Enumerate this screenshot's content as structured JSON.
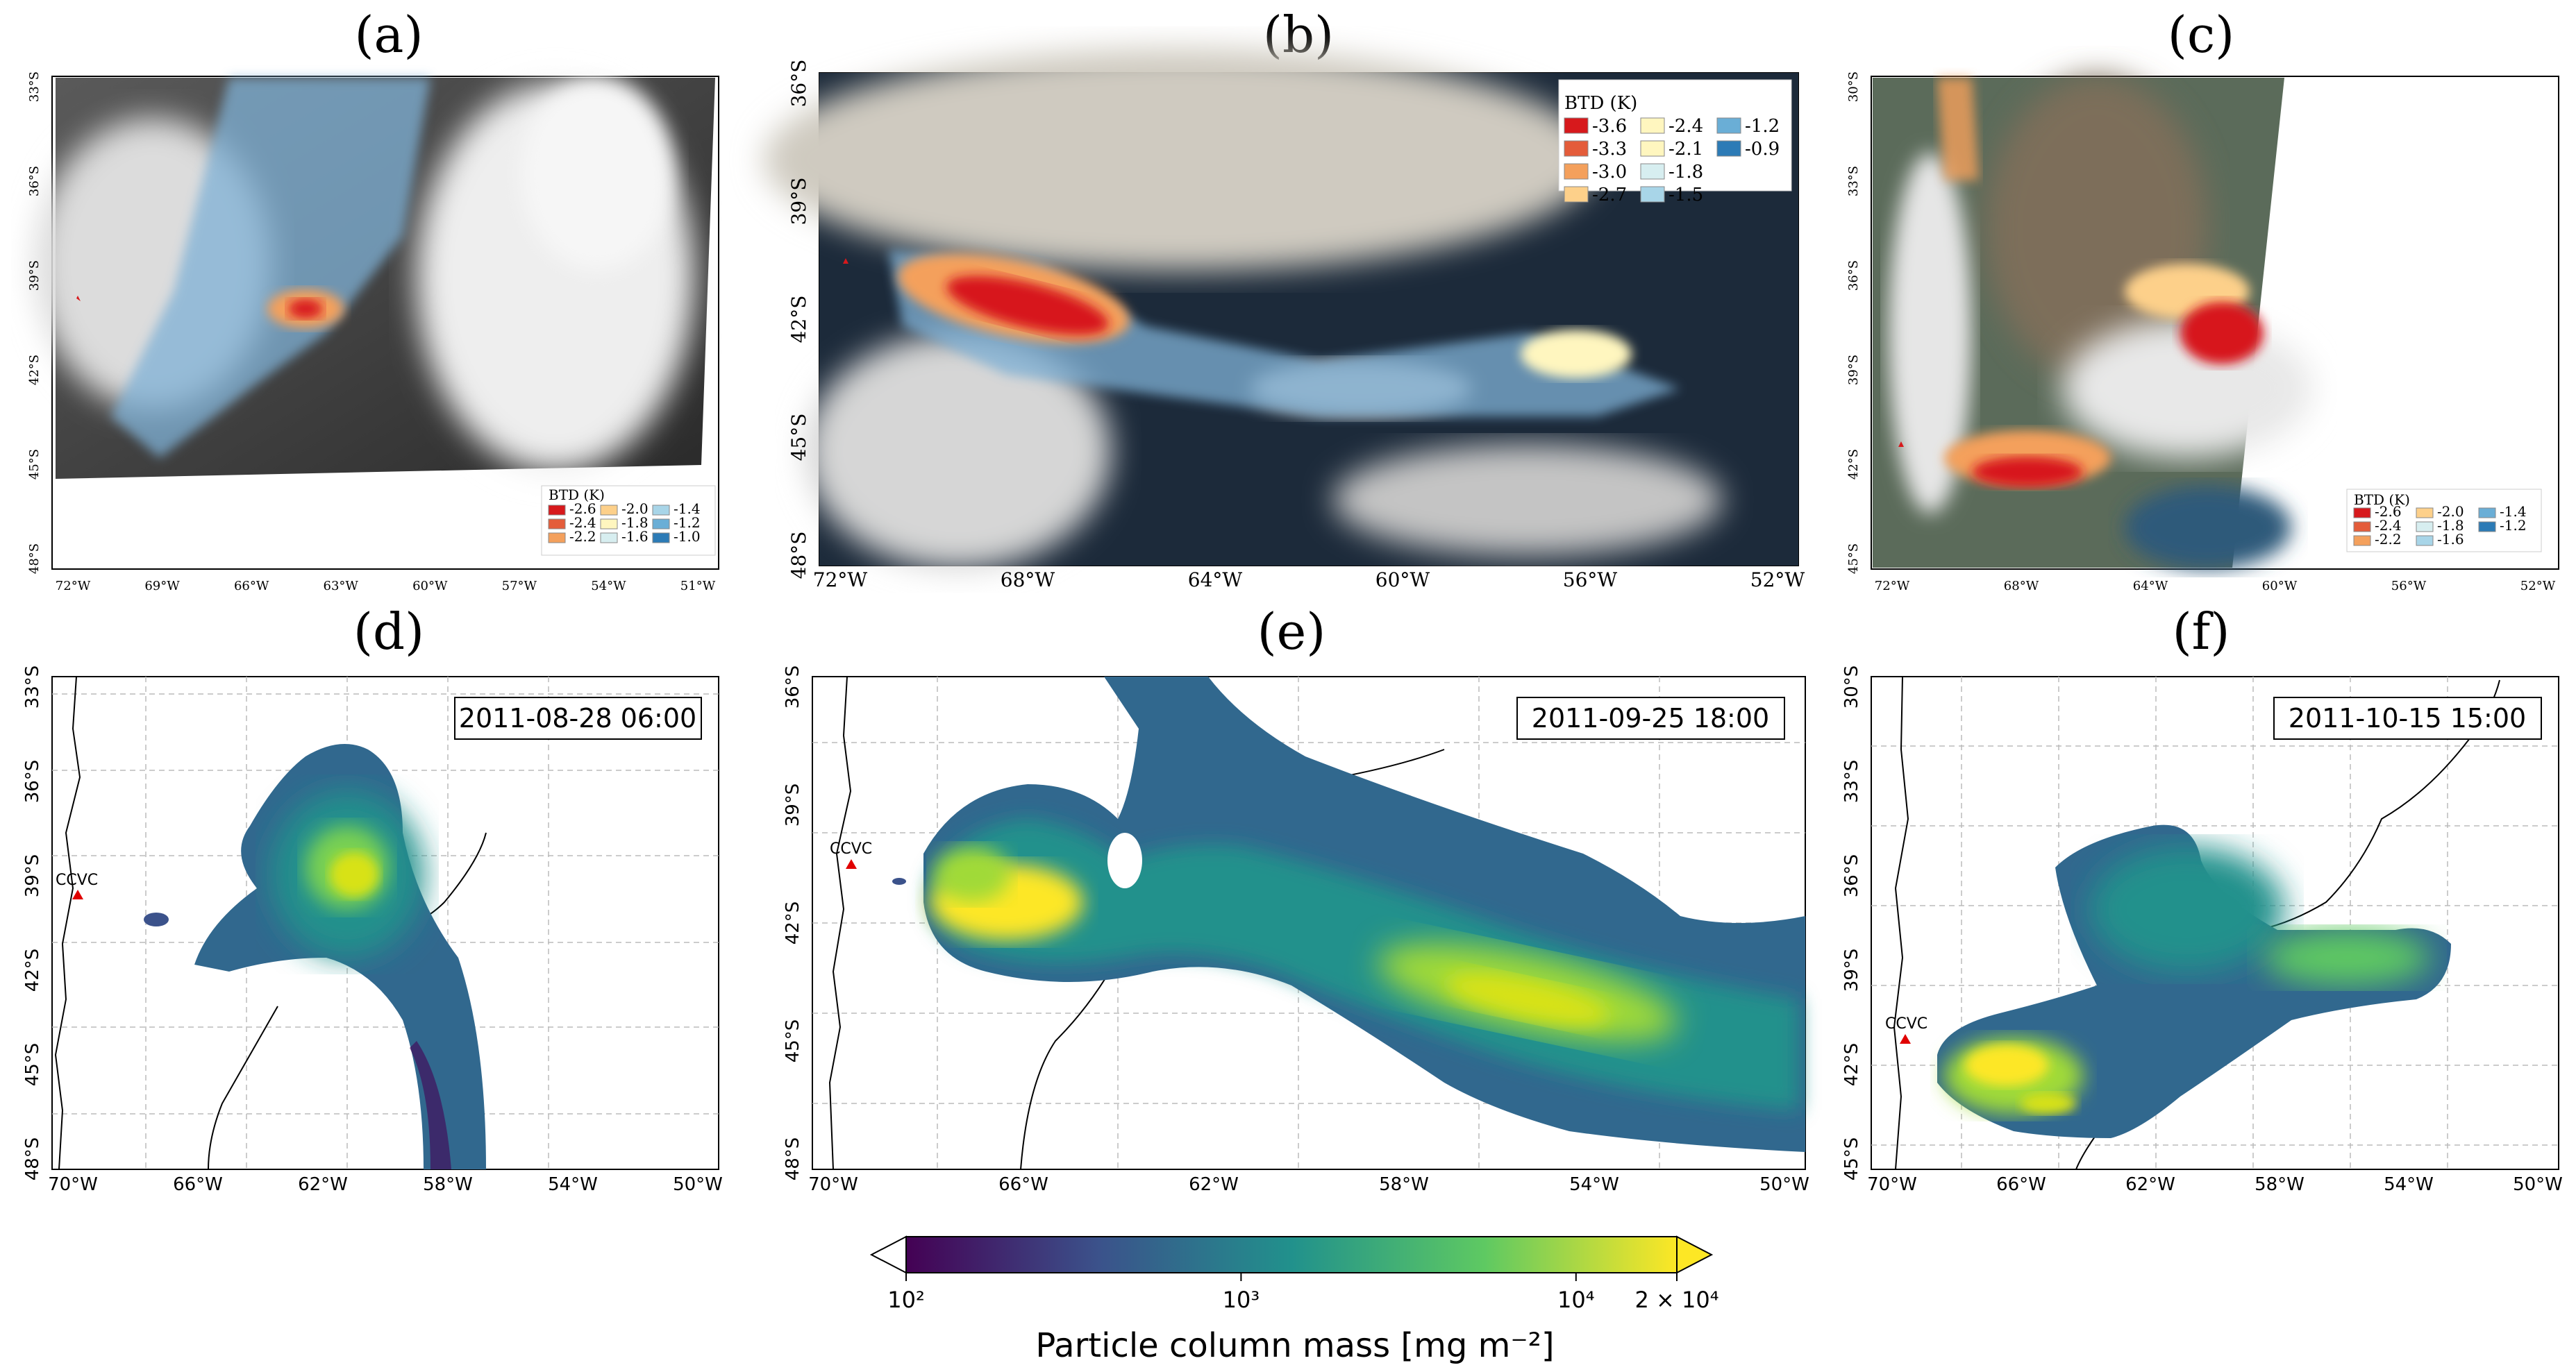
{
  "panels": {
    "a": {
      "label": "(a)",
      "lat_ticks": [
        "33°S",
        "36°S",
        "39°S",
        "42°S",
        "45°S",
        "48°S"
      ],
      "lon_ticks": [
        "72°W",
        "69°W",
        "66°W",
        "63°W",
        "60°W",
        "57°W",
        "54°W",
        "51°W"
      ],
      "legend": {
        "title": "BTD (K)",
        "items": [
          "-2.6",
          "-2.4",
          "-2.2",
          "-2.0",
          "-1.8",
          "-1.6",
          "-1.4",
          "-1.2",
          "-1.0"
        ]
      }
    },
    "b": {
      "label": "(b)",
      "lat_ticks": [
        "36°S",
        "39°S",
        "42°S",
        "45°S",
        "48°S"
      ],
      "lon_ticks": [
        "72°W",
        "68°W",
        "64°W",
        "60°W",
        "56°W",
        "52°W"
      ],
      "legend": {
        "title": "BTD (K)",
        "items": [
          "-3.6",
          "-3.3",
          "-3.0",
          "-2.7",
          "-2.4",
          "-2.1",
          "-1.8",
          "-1.5",
          "-1.2",
          "-0.9"
        ]
      }
    },
    "c": {
      "label": "(c)",
      "lat_ticks": [
        "30°S",
        "33°S",
        "36°S",
        "39°S",
        "42°S",
        "45°S"
      ],
      "lon_ticks": [
        "72°W",
        "68°W",
        "64°W",
        "60°W",
        "56°W",
        "52°W"
      ],
      "legend": {
        "title": "BTD (K)",
        "items": [
          "-2.6",
          "-2.4",
          "-2.2",
          "-2.0",
          "-1.8",
          "-1.6",
          "-1.4",
          "-1.2"
        ]
      }
    },
    "d": {
      "label": "(d)",
      "date": "2011-08-28 06:00",
      "vent": "CCVC",
      "lat_ticks": [
        "33°S",
        "36°S",
        "39°S",
        "42°S",
        "45°S",
        "48°S"
      ],
      "lon_ticks": [
        "70°W",
        "66°W",
        "62°W",
        "58°W",
        "54°W",
        "50°W"
      ]
    },
    "e": {
      "label": "(e)",
      "date": "2011-09-25 18:00",
      "vent": "CCVC",
      "lat_ticks": [
        "36°S",
        "39°S",
        "42°S",
        "45°S",
        "48°S"
      ],
      "lon_ticks": [
        "70°W",
        "66°W",
        "62°W",
        "58°W",
        "54°W",
        "50°W"
      ]
    },
    "f": {
      "label": "(f)",
      "date": "2011-10-15 15:00",
      "vent": "CCVC",
      "lat_ticks": [
        "30°S",
        "33°S",
        "36°S",
        "39°S",
        "42°S",
        "45°S"
      ],
      "lon_ticks": [
        "70°W",
        "66°W",
        "62°W",
        "58°W",
        "54°W",
        "50°W"
      ]
    }
  },
  "colorbar": {
    "title": "Particle column mass [mg m⁻²]",
    "ticks": [
      "10²",
      "10³",
      "10⁴",
      "2 × 10⁴"
    ],
    "colors": [
      "#440154",
      "#3b528b",
      "#21918c",
      "#5ec962",
      "#fde725"
    ]
  },
  "btd_colors": [
    "#d7191c",
    "#e45c3a",
    "#f4a05c",
    "#fdd08a",
    "#fff6bf",
    "#d7eef0",
    "#a8d5e8",
    "#6aaed6",
    "#2c7bb6"
  ]
}
